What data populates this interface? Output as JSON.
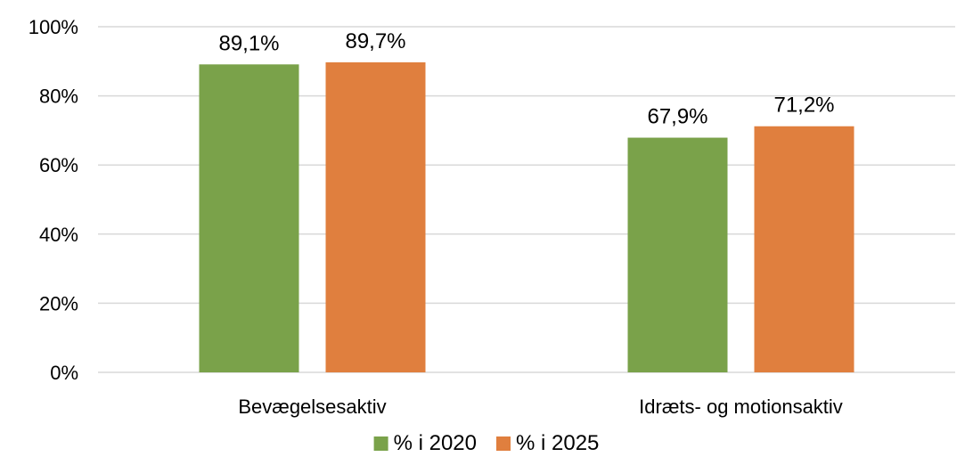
{
  "chart_data": {
    "type": "bar",
    "categories": [
      "Bevægelsesaktiv",
      "Idræts- og motionsaktiv"
    ],
    "series": [
      {
        "name": "% i 2020",
        "values": [
          89.1,
          67.9
        ],
        "labels": [
          "89,1%",
          "67,9%"
        ],
        "color": "#7aa24a"
      },
      {
        "name": "% i 2025",
        "values": [
          89.7,
          71.2
        ],
        "labels": [
          "89,7%",
          "71,2%"
        ],
        "color": "#e07f3e"
      }
    ],
    "yticks": [
      "0%",
      "20%",
      "40%",
      "60%",
      "80%",
      "100%"
    ],
    "ylim": [
      0,
      100
    ],
    "grid": true,
    "legend_position": "bottom"
  }
}
